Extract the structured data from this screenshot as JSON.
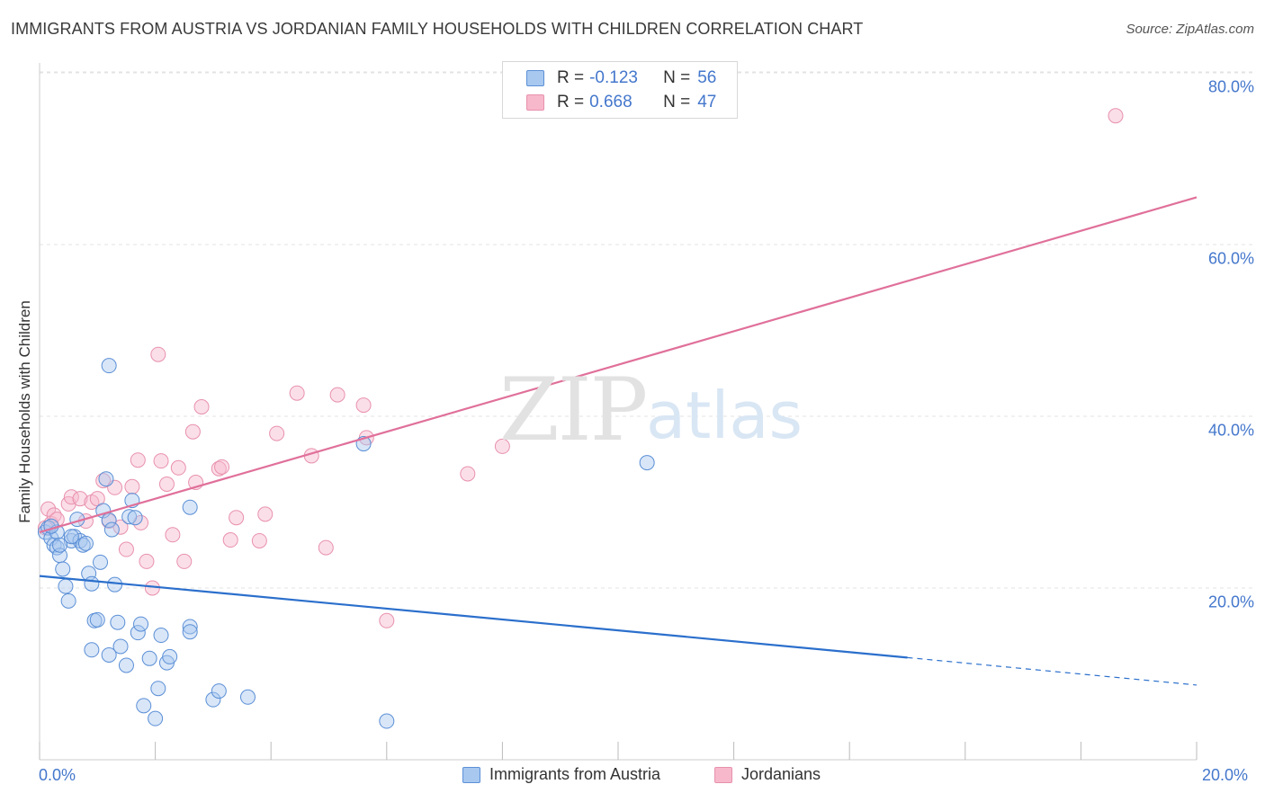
{
  "header": {
    "title": "IMMIGRANTS FROM AUSTRIA VS JORDANIAN FAMILY HOUSEHOLDS WITH CHILDREN CORRELATION CHART",
    "source": "Source: ZipAtlas.com"
  },
  "watermark": {
    "zip": "ZIP",
    "atlas": "atlas"
  },
  "legend": {
    "rows": [
      {
        "r_label": "R =",
        "r_value": "-0.123",
        "n_label": "N =",
        "n_value": "56",
        "color": "#a8c8f0"
      },
      {
        "r_label": "R =",
        "r_value": "0.668",
        "n_label": "N =",
        "n_value": "47",
        "color": "#f7b8cb"
      }
    ]
  },
  "colors": {
    "blue_fill": "#a8c8f0",
    "blue_stroke": "#5b8fd6",
    "blue_line": "#2b6fcc",
    "pink_fill": "#f7b8cb",
    "pink_stroke": "#e891ad",
    "pink_line": "#e0709a",
    "grid": "#e3e3e3",
    "tick_text": "#4477cc"
  },
  "chart_data": {
    "type": "scatter",
    "title": "IMMIGRANTS FROM AUSTRIA VS JORDANIAN FAMILY HOUSEHOLDS WITH CHILDREN CORRELATION CHART",
    "xlabel": "",
    "ylabel": "Family Households with Children",
    "xlim": [
      0,
      20
    ],
    "ylim": [
      0,
      80
    ],
    "x_tick_labels": [
      "0.0%",
      "20.0%"
    ],
    "y_ticks": [
      20,
      40,
      60,
      80
    ],
    "y_tick_labels": [
      "20.0%",
      "40.0%",
      "60.0%",
      "80.0%"
    ],
    "grid": true,
    "series": [
      {
        "name": "Immigrants from Austria",
        "r": -0.123,
        "n": 56,
        "points": [
          [
            0.1,
            26.5
          ],
          [
            0.15,
            27
          ],
          [
            0.2,
            25.8
          ],
          [
            0.25,
            25
          ],
          [
            0.3,
            24.7
          ],
          [
            0.35,
            23.8
          ],
          [
            0.4,
            22.2
          ],
          [
            0.45,
            20.2
          ],
          [
            0.5,
            18.5
          ],
          [
            0.55,
            25.5
          ],
          [
            0.6,
            26
          ],
          [
            0.65,
            28
          ],
          [
            0.7,
            25.5
          ],
          [
            0.75,
            25
          ],
          [
            0.8,
            25.2
          ],
          [
            0.85,
            21.7
          ],
          [
            0.9,
            20.5
          ],
          [
            0.95,
            16.2
          ],
          [
            1.0,
            16.3
          ],
          [
            1.05,
            23
          ],
          [
            1.1,
            29
          ],
          [
            1.15,
            32.7
          ],
          [
            1.2,
            27.9
          ],
          [
            1.25,
            26.8
          ],
          [
            1.3,
            20.4
          ],
          [
            1.35,
            16
          ],
          [
            1.4,
            13.2
          ],
          [
            1.5,
            11
          ],
          [
            1.55,
            28.3
          ],
          [
            1.6,
            30.2
          ],
          [
            1.7,
            14.8
          ],
          [
            1.75,
            15.8
          ],
          [
            1.8,
            6.3
          ],
          [
            1.9,
            11.8
          ],
          [
            2.0,
            4.8
          ],
          [
            2.05,
            8.3
          ],
          [
            2.1,
            14.5
          ],
          [
            2.2,
            11.3
          ],
          [
            2.25,
            12
          ],
          [
            2.6,
            15.5
          ],
          [
            2.6,
            14.9
          ],
          [
            2.6,
            29.4
          ],
          [
            3.0,
            7
          ],
          [
            3.1,
            8
          ],
          [
            3.6,
            7.3
          ],
          [
            5.6,
            36.8
          ],
          [
            6.0,
            4.5
          ],
          [
            10.5,
            34.6
          ],
          [
            1.2,
            45.9
          ],
          [
            0.9,
            12.8
          ],
          [
            1.2,
            12.2
          ],
          [
            0.3,
            26.5
          ],
          [
            0.2,
            27.2
          ],
          [
            1.65,
            28.2
          ],
          [
            0.55,
            26
          ],
          [
            0.35,
            25
          ]
        ]
      },
      {
        "name": "Jordanians",
        "r": 0.668,
        "n": 47,
        "points": [
          [
            0.1,
            27
          ],
          [
            0.15,
            29.2
          ],
          [
            0.2,
            27.5
          ],
          [
            0.25,
            28.5
          ],
          [
            0.3,
            28
          ],
          [
            0.5,
            29.8
          ],
          [
            0.55,
            30.6
          ],
          [
            0.7,
            30.4
          ],
          [
            0.8,
            27.8
          ],
          [
            0.9,
            30
          ],
          [
            1.0,
            30.4
          ],
          [
            1.1,
            32.5
          ],
          [
            1.2,
            27.8
          ],
          [
            1.3,
            31.7
          ],
          [
            1.4,
            27.1
          ],
          [
            1.5,
            24.5
          ],
          [
            1.6,
            31.8
          ],
          [
            1.7,
            34.9
          ],
          [
            1.75,
            27.6
          ],
          [
            1.85,
            23.1
          ],
          [
            1.95,
            20
          ],
          [
            2.05,
            47.2
          ],
          [
            2.1,
            34.8
          ],
          [
            2.2,
            32.1
          ],
          [
            2.3,
            26.2
          ],
          [
            2.4,
            34
          ],
          [
            2.5,
            23.1
          ],
          [
            2.65,
            38.2
          ],
          [
            2.7,
            32.3
          ],
          [
            2.8,
            41.1
          ],
          [
            3.1,
            33.9
          ],
          [
            3.15,
            34.1
          ],
          [
            3.3,
            25.6
          ],
          [
            3.4,
            28.2
          ],
          [
            3.8,
            25.5
          ],
          [
            3.9,
            28.6
          ],
          [
            4.1,
            38
          ],
          [
            4.45,
            42.7
          ],
          [
            4.7,
            35.4
          ],
          [
            4.95,
            24.7
          ],
          [
            5.15,
            42.5
          ],
          [
            5.6,
            41.3
          ],
          [
            5.65,
            37.5
          ],
          [
            6.0,
            16.2
          ],
          [
            7.4,
            33.3
          ],
          [
            8.0,
            36.5
          ],
          [
            18.6,
            75
          ]
        ]
      }
    ],
    "trendlines": [
      {
        "series": "Immigrants from Austria",
        "x": [
          0,
          15
        ],
        "y": [
          21.4,
          11.9
        ],
        "dashed_extension": {
          "x": [
            15,
            20
          ],
          "y": [
            11.9,
            8.7
          ]
        }
      },
      {
        "series": "Jordanians",
        "x": [
          0,
          20
        ],
        "y": [
          26.5,
          65.5
        ]
      }
    ]
  },
  "bottom_legend": {
    "series1": "Immigrants from Austria",
    "series2": "Jordanians"
  }
}
